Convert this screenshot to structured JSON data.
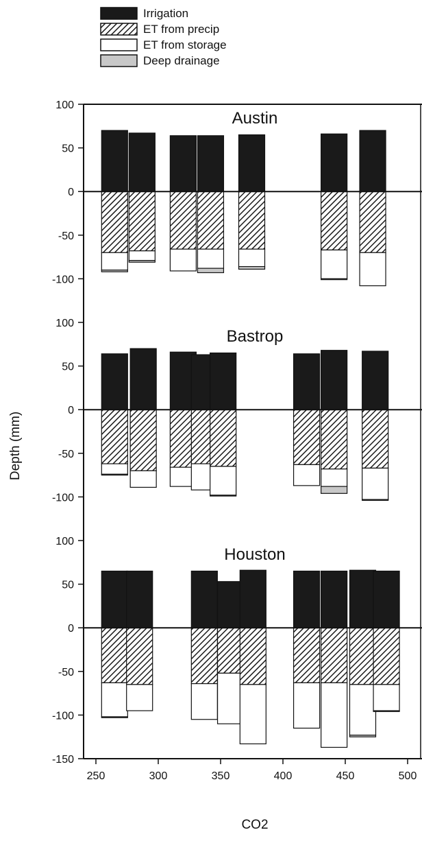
{
  "chart_data": {
    "type": "bar",
    "stacked": true,
    "xlabel": "CO2",
    "ylabel": "Depth (mm)",
    "xlim": [
      250,
      500
    ],
    "x_ticks": [
      250,
      300,
      350,
      400,
      450,
      500
    ],
    "grid": false,
    "legend_position": "top-left",
    "legend": [
      {
        "key": "irrigation",
        "label": "Irrigation",
        "style": "solid",
        "color": "#1a1a1a"
      },
      {
        "key": "et_precip",
        "label": "ET from precip",
        "style": "hatch",
        "color": "#1a1a1a"
      },
      {
        "key": "et_storage",
        "label": "ET from storage",
        "style": "empty",
        "color": "#ffffff"
      },
      {
        "key": "deep_drainage",
        "label": "Deep drainage",
        "style": "solid",
        "color": "#c8c8c8"
      }
    ],
    "panels": [
      {
        "title": "Austin",
        "ylim": [
          -150,
          100
        ],
        "y_ticks": [
          100,
          50,
          0,
          -50,
          -100,
          -150
        ],
        "bars": [
          {
            "x": 265,
            "irrigation": 70,
            "et_precip": -70,
            "et_storage": -20,
            "deep_drainage": -2
          },
          {
            "x": 287,
            "irrigation": 67,
            "et_precip": -68,
            "et_storage": -11,
            "deep_drainage": -2
          },
          {
            "x": 320,
            "irrigation": 64,
            "et_precip": -66,
            "et_storage": -25,
            "deep_drainage": 0
          },
          {
            "x": 342,
            "irrigation": 64,
            "et_precip": -66,
            "et_storage": -22,
            "deep_drainage": -5
          },
          {
            "x": 375,
            "irrigation": 65,
            "et_precip": -66,
            "et_storage": -20,
            "deep_drainage": -3
          },
          {
            "x": 441,
            "irrigation": 66,
            "et_precip": -67,
            "et_storage": -33,
            "deep_drainage": -1
          },
          {
            "x": 472,
            "irrigation": 70,
            "et_precip": -70,
            "et_storage": -38,
            "deep_drainage": 0
          }
        ]
      },
      {
        "title": "Bastrop",
        "ylim": [
          -150,
          100
        ],
        "y_ticks": [
          100,
          50,
          0,
          -50,
          -100,
          -150
        ],
        "bars": [
          {
            "x": 265,
            "irrigation": 64,
            "et_precip": -62,
            "et_storage": -12,
            "deep_drainage": -1
          },
          {
            "x": 288,
            "irrigation": 70,
            "et_precip": -70,
            "et_storage": -19,
            "deep_drainage": 0
          },
          {
            "x": 320,
            "irrigation": 66,
            "et_precip": -66,
            "et_storage": -22,
            "deep_drainage": 0
          },
          {
            "x": 337,
            "irrigation": 63,
            "et_precip": -62,
            "et_storage": -30,
            "deep_drainage": 0
          },
          {
            "x": 352,
            "irrigation": 65,
            "et_precip": -65,
            "et_storage": -33,
            "deep_drainage": -1
          },
          {
            "x": 419,
            "irrigation": 64,
            "et_precip": -63,
            "et_storage": -24,
            "deep_drainage": 0
          },
          {
            "x": 441,
            "irrigation": 68,
            "et_precip": -68,
            "et_storage": -20,
            "deep_drainage": -8
          },
          {
            "x": 474,
            "irrigation": 67,
            "et_precip": -67,
            "et_storage": -36,
            "deep_drainage": -1
          }
        ]
      },
      {
        "title": "Houston",
        "ylim": [
          -150,
          100
        ],
        "y_ticks": [
          100,
          50,
          0,
          -50,
          -100,
          -150
        ],
        "bars": [
          {
            "x": 265,
            "irrigation": 65,
            "et_precip": -63,
            "et_storage": -39,
            "deep_drainage": -1
          },
          {
            "x": 285,
            "irrigation": 65,
            "et_precip": -65,
            "et_storage": -30,
            "deep_drainage": 0
          },
          {
            "x": 337,
            "irrigation": 65,
            "et_precip": -64,
            "et_storage": -41,
            "deep_drainage": 0
          },
          {
            "x": 358,
            "irrigation": 53,
            "et_precip": -52,
            "et_storage": -58,
            "deep_drainage": 0
          },
          {
            "x": 376,
            "irrigation": 66,
            "et_precip": -65,
            "et_storage": -68,
            "deep_drainage": 0
          },
          {
            "x": 419,
            "irrigation": 65,
            "et_precip": -63,
            "et_storage": -52,
            "deep_drainage": 0
          },
          {
            "x": 441,
            "irrigation": 65,
            "et_precip": -63,
            "et_storage": -74,
            "deep_drainage": 0
          },
          {
            "x": 464,
            "irrigation": 66,
            "et_precip": -65,
            "et_storage": -58,
            "deep_drainage": -2
          },
          {
            "x": 483,
            "irrigation": 65,
            "et_precip": -65,
            "et_storage": -30,
            "deep_drainage": -1
          }
        ]
      }
    ]
  }
}
